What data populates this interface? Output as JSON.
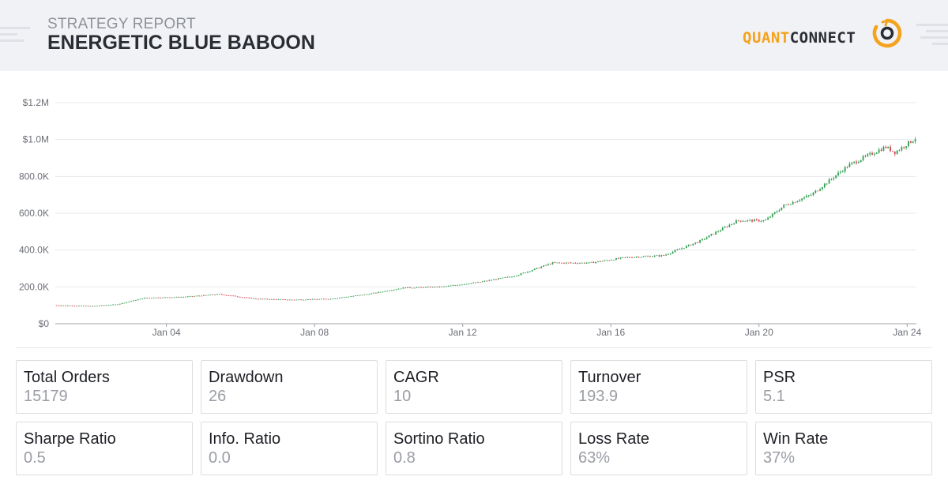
{
  "header": {
    "report_label": "STRATEGY REPORT",
    "strategy_name": "ENERGETIC BLUE BABOON",
    "logo": {
      "part1": "QUANT",
      "part2": "CONNECT",
      "icon": "quantconnect-logo-icon"
    }
  },
  "colors": {
    "up": "#2e9e4f",
    "down": "#d6404d",
    "accent": "#f5a21c",
    "grid": "#e7e8eb",
    "axis_text": "#6b6e75"
  },
  "chart_data": {
    "type": "candlestick",
    "title": "",
    "xlabel": "",
    "ylabel": "",
    "ylim": [
      0,
      1200000
    ],
    "yticks": [
      0,
      200000,
      400000,
      600000,
      800000,
      1000000,
      1200000
    ],
    "ytick_labels": [
      "$0",
      "200.0K",
      "400.0K",
      "600.0K",
      "800.0K",
      "$1.0M",
      "$1.2M"
    ],
    "xtick_labels": [
      "Jan 04",
      "Jan 08",
      "Jan 12",
      "Jan 16",
      "Jan 20",
      "Jan 24"
    ],
    "x_range": [
      "2001-01",
      "2024-04"
    ],
    "grid": true,
    "series": [
      {
        "values": [
          {
            "date": "2001-01",
            "value": 100000
          },
          {
            "date": "2002-01",
            "value": 95000
          },
          {
            "date": "2002-09",
            "value": 105000
          },
          {
            "date": "2003-06",
            "value": 140000
          },
          {
            "date": "2004-06",
            "value": 145000
          },
          {
            "date": "2005-06",
            "value": 160000
          },
          {
            "date": "2006-06",
            "value": 135000
          },
          {
            "date": "2007-06",
            "value": 130000
          },
          {
            "date": "2008-06",
            "value": 135000
          },
          {
            "date": "2009-06",
            "value": 160000
          },
          {
            "date": "2010-06",
            "value": 195000
          },
          {
            "date": "2011-06",
            "value": 200000
          },
          {
            "date": "2012-06",
            "value": 225000
          },
          {
            "date": "2013-06",
            "value": 260000
          },
          {
            "date": "2014-06",
            "value": 330000
          },
          {
            "date": "2015-06",
            "value": 330000
          },
          {
            "date": "2016-06",
            "value": 360000
          },
          {
            "date": "2017-06",
            "value": 370000
          },
          {
            "date": "2018-06",
            "value": 450000
          },
          {
            "date": "2019-06",
            "value": 560000
          },
          {
            "date": "2020-03",
            "value": 560000
          },
          {
            "date": "2020-09",
            "value": 640000
          },
          {
            "date": "2021-06",
            "value": 700000
          },
          {
            "date": "2022-06",
            "value": 860000
          },
          {
            "date": "2023-06",
            "value": 960000
          },
          {
            "date": "2023-09",
            "value": 930000
          },
          {
            "date": "2024-04",
            "value": 1010000
          }
        ]
      }
    ]
  },
  "stats": [
    {
      "label": "Total Orders",
      "value": "15179"
    },
    {
      "label": "Drawdown",
      "value": "26"
    },
    {
      "label": "CAGR",
      "value": "10"
    },
    {
      "label": "Turnover",
      "value": "193.9"
    },
    {
      "label": "PSR",
      "value": "5.1"
    },
    {
      "label": "Sharpe Ratio",
      "value": "0.5"
    },
    {
      "label": "Info. Ratio",
      "value": "0.0"
    },
    {
      "label": "Sortino Ratio",
      "value": "0.8"
    },
    {
      "label": "Loss Rate",
      "value": "63%"
    },
    {
      "label": "Win Rate",
      "value": "37%"
    }
  ]
}
